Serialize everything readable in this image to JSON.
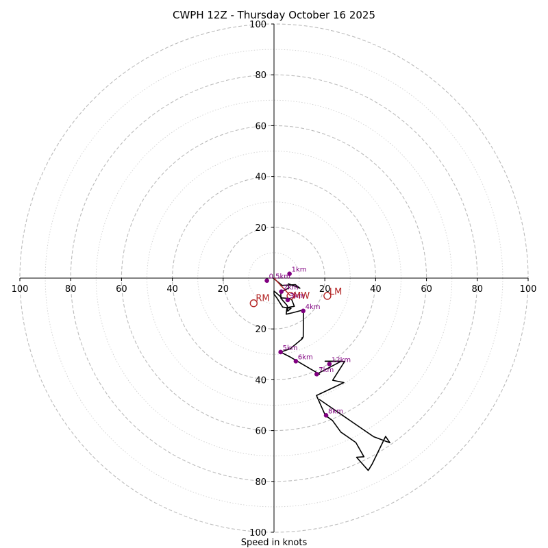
{
  "chart_data": {
    "type": "hodograph",
    "title": "CWPH 12Z - Thursday October 16 2025",
    "xlabel": "Speed in knots",
    "range_knots": 100,
    "major_rings": [
      20,
      40,
      60,
      80,
      100
    ],
    "minor_rings": [
      10,
      30,
      50,
      70,
      90
    ],
    "x_tick_labels": [
      "100",
      "80",
      "60",
      "40",
      "20",
      "20",
      "40",
      "60",
      "80",
      "100"
    ],
    "y_tick_labels_up": [
      "20",
      "40",
      "60",
      "80",
      "100"
    ],
    "y_tick_labels_down": [
      "20",
      "40",
      "60",
      "80",
      "100"
    ],
    "colors": {
      "trace": "#000000",
      "height_marker": "#800080",
      "motion": "#b22222",
      "grid": "#bbbbbb",
      "axis": "#000000"
    },
    "trace_u": [
      -0.3,
      3.0,
      2.6,
      8.4,
      10.2,
      5.7,
      5.8,
      2.7,
      2.7,
      5.2,
      5.4,
      5.4,
      6.7,
      3.4,
      1.0,
      0.0,
      0.0,
      1.1,
      3.1,
      6.1,
      6.9,
      8.0,
      5.1,
      4.8,
      7.4,
      11.6,
      11.5,
      10.9,
      11.2,
      6.4,
      2.6,
      6.5,
      14.8,
      17.9,
      16.8,
      26.5,
      20.1,
      27.8,
      27.6,
      23.1,
      27.5,
      16.7,
      19.3,
      20.2,
      23.0,
      26.3,
      32.2,
      35.4,
      32.5,
      32.5,
      37.1,
      38.6,
      43.9,
      45.6,
      39.2,
      17.8
    ],
    "trace_v": [
      0.0,
      -2.7,
      -2.9,
      -2.6,
      -4.0,
      -2.2,
      -3.9,
      -5.5,
      -7.9,
      -10.8,
      -12.4,
      -13.0,
      -11.9,
      -11.4,
      -7.6,
      -6.3,
      -5.1,
      -6.0,
      -7.8,
      -8.0,
      -8.3,
      -11.1,
      -11.6,
      -14.2,
      -13.6,
      -12.5,
      -23.2,
      -23.6,
      -23.8,
      -27.8,
      -29.1,
      -31.1,
      -36.0,
      -37.8,
      -37.8,
      -32.7,
      -32.7,
      -32.8,
      -33.1,
      -40.2,
      -41.1,
      -46.2,
      -52.0,
      -54.0,
      -56.0,
      -60.6,
      -64.7,
      -70.3,
      -70.5,
      -70.5,
      -75.7,
      -73.2,
      -62.3,
      -64.8,
      -62.4,
      -47.7
    ],
    "height_markers": [
      {
        "label": "0.5km",
        "u": -2.8,
        "v": -1.0
      },
      {
        "label": "1km",
        "u": 6.1,
        "v": 1.7
      },
      {
        "label": "2km",
        "u": 2.9,
        "v": -5.3
      },
      {
        "label": "3km",
        "u": 5.4,
        "v": -8.6
      },
      {
        "label": "4km",
        "u": 11.5,
        "v": -12.9
      },
      {
        "label": "5km",
        "u": 2.6,
        "v": -29.1
      },
      {
        "label": "6km",
        "u": 8.6,
        "v": -32.7
      },
      {
        "label": "7km",
        "u": 16.8,
        "v": -37.8
      },
      {
        "label": "8km",
        "u": 20.5,
        "v": -54.0
      },
      {
        "label": "12km",
        "u": 21.8,
        "v": -33.8
      }
    ],
    "storm_motions": [
      {
        "label": "RM",
        "u": -8.0,
        "v": -9.9
      },
      {
        "label": "LM",
        "u": 21.0,
        "v": -7.0
      },
      {
        "label": "MW",
        "u": 6.5,
        "v": -7.0
      }
    ]
  }
}
